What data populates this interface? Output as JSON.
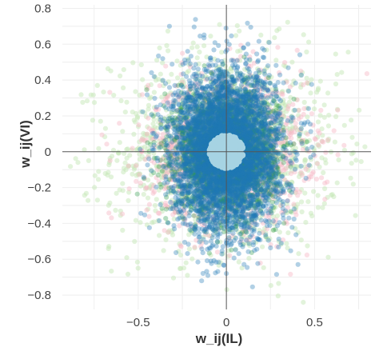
{
  "chart_data": {
    "type": "scatter",
    "title": "",
    "xlabel": "w_ij(IL)",
    "ylabel": "w_ij(VI)",
    "xlim": [
      -0.93,
      0.82
    ],
    "ylim": [
      -0.88,
      0.82
    ],
    "x_ticks": [
      -0.5,
      0,
      0.5
    ],
    "x_tick_labels": [
      "−0.5",
      "0",
      "0.5"
    ],
    "y_ticks": [
      -0.8,
      -0.6,
      -0.4,
      -0.2,
      0,
      0.2,
      0.4,
      0.6,
      0.8
    ],
    "y_tick_labels": [
      "−0.8",
      "−0.6",
      "−0.4",
      "−0.2",
      "0",
      "0.2",
      "0.4",
      "0.6",
      "0.8"
    ],
    "grid": true,
    "legend": "none",
    "series": [
      {
        "color": "#c5e8b7",
        "opacity": 0.5,
        "n_points": 1400,
        "center": [
          0,
          0
        ],
        "spread": [
          0.32,
          0.28
        ],
        "distribution": "gaussian, sparse tails to about ±0.85"
      },
      {
        "color": "#f6b8c5",
        "opacity": 0.45,
        "n_points": 1600,
        "center": [
          0,
          0
        ],
        "spread": [
          0.22,
          0.2
        ],
        "distribution": "gaussian"
      },
      {
        "color": "#2e9a4a",
        "opacity": 0.35,
        "n_points": 2200,
        "center": [
          0,
          0
        ],
        "spread": [
          0.14,
          0.16
        ],
        "distribution": "gaussian"
      },
      {
        "color": "#1f78b4",
        "opacity": 0.35,
        "n_points": 4500,
        "center": [
          0,
          0
        ],
        "spread": [
          0.15,
          0.22
        ],
        "distribution": "gaussian, elongated in y, extends to about -0.8"
      },
      {
        "color": "#a6d3e3",
        "opacity": 1,
        "n_points": 400,
        "center": [
          0,
          0
        ],
        "spread": [
          0.05,
          0.045
        ],
        "distribution": "dense central disk, radius about 0.09"
      }
    ]
  }
}
